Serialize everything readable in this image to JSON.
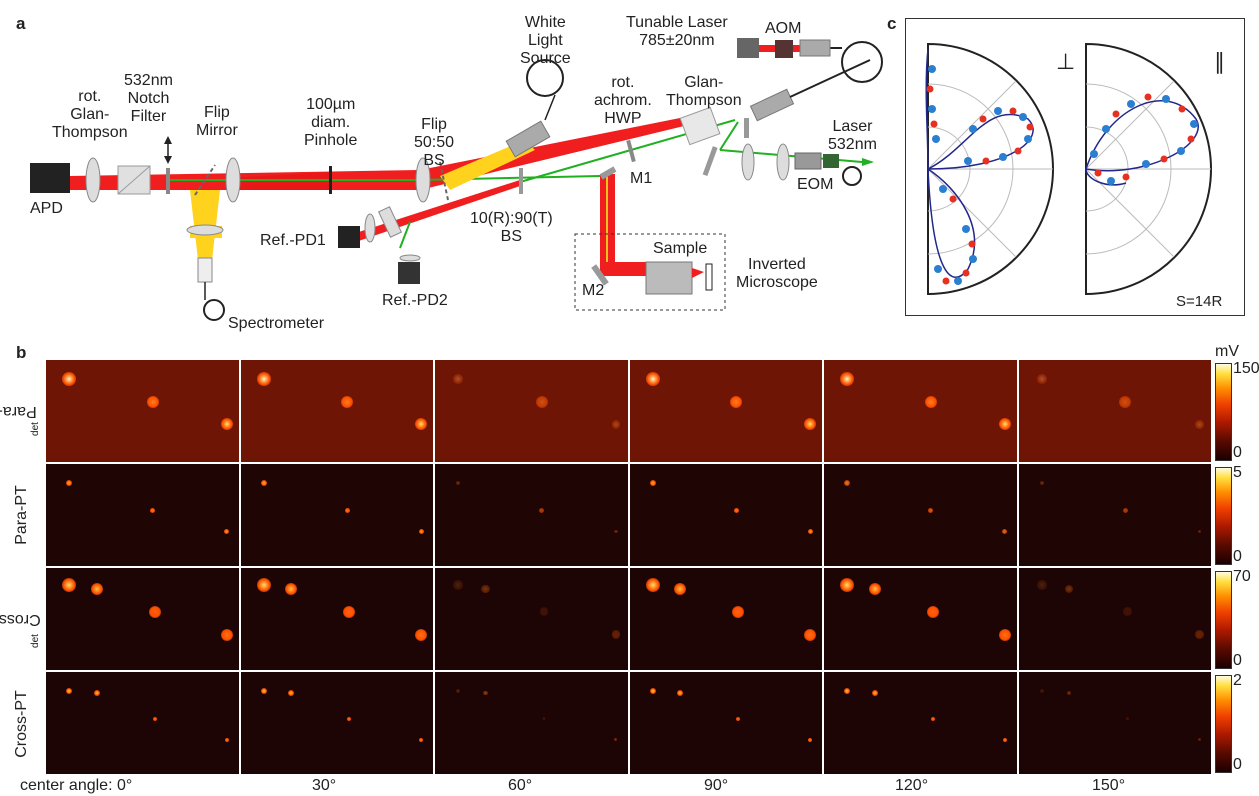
{
  "panel_a": {
    "label": "a",
    "components": {
      "apd": "APD",
      "glan1": "rot.\nGlan-\nThompson",
      "notch": "532nm\nNotch\nFilter",
      "flip_mirror": "Flip\nMirror",
      "pinhole": "100µm\ndiam.\nPinhole",
      "flip_bs": "Flip\n50:50\nBS",
      "white_light": "White\nLight\nSource",
      "hwp": "rot.\nachrom.\nHWP",
      "glan2": "Glan-\nThompson",
      "tunable_laser": "Tunable Laser\n785±20nm",
      "aom": "AOM",
      "laser532": "Laser\n532nm",
      "eom": "EOM",
      "m1": "M1",
      "m2": "M2",
      "sample": "Sample",
      "microscope": "Inverted\nMicroscope",
      "bs1090": "10(R):90(T)\nBS",
      "refpd1": "Ref.-PD1",
      "refpd2": "Ref.-PD2",
      "spectrometer": "Spectrometer"
    }
  },
  "panel_c": {
    "label": "c",
    "perp_symbol": "⊥",
    "para_symbol": "∥",
    "scale_note": "S=14R"
  },
  "panel_b": {
    "label": "b",
    "unit": "mV",
    "rows": [
      {
        "label": "Para-P",
        "sub": "det",
        "scale_max": "150",
        "scale_min": "0"
      },
      {
        "label": "Para-PT",
        "sub": "",
        "scale_max": "5",
        "scale_min": "0"
      },
      {
        "label": "Cross-P",
        "sub": "det",
        "scale_max": "70",
        "scale_min": "0"
      },
      {
        "label": "Cross-PT",
        "sub": "",
        "scale_max": "2",
        "scale_min": "0"
      }
    ],
    "angles": [
      "center angle: 0°",
      "30°",
      "60°",
      "90°",
      "120°",
      "150°"
    ]
  }
}
